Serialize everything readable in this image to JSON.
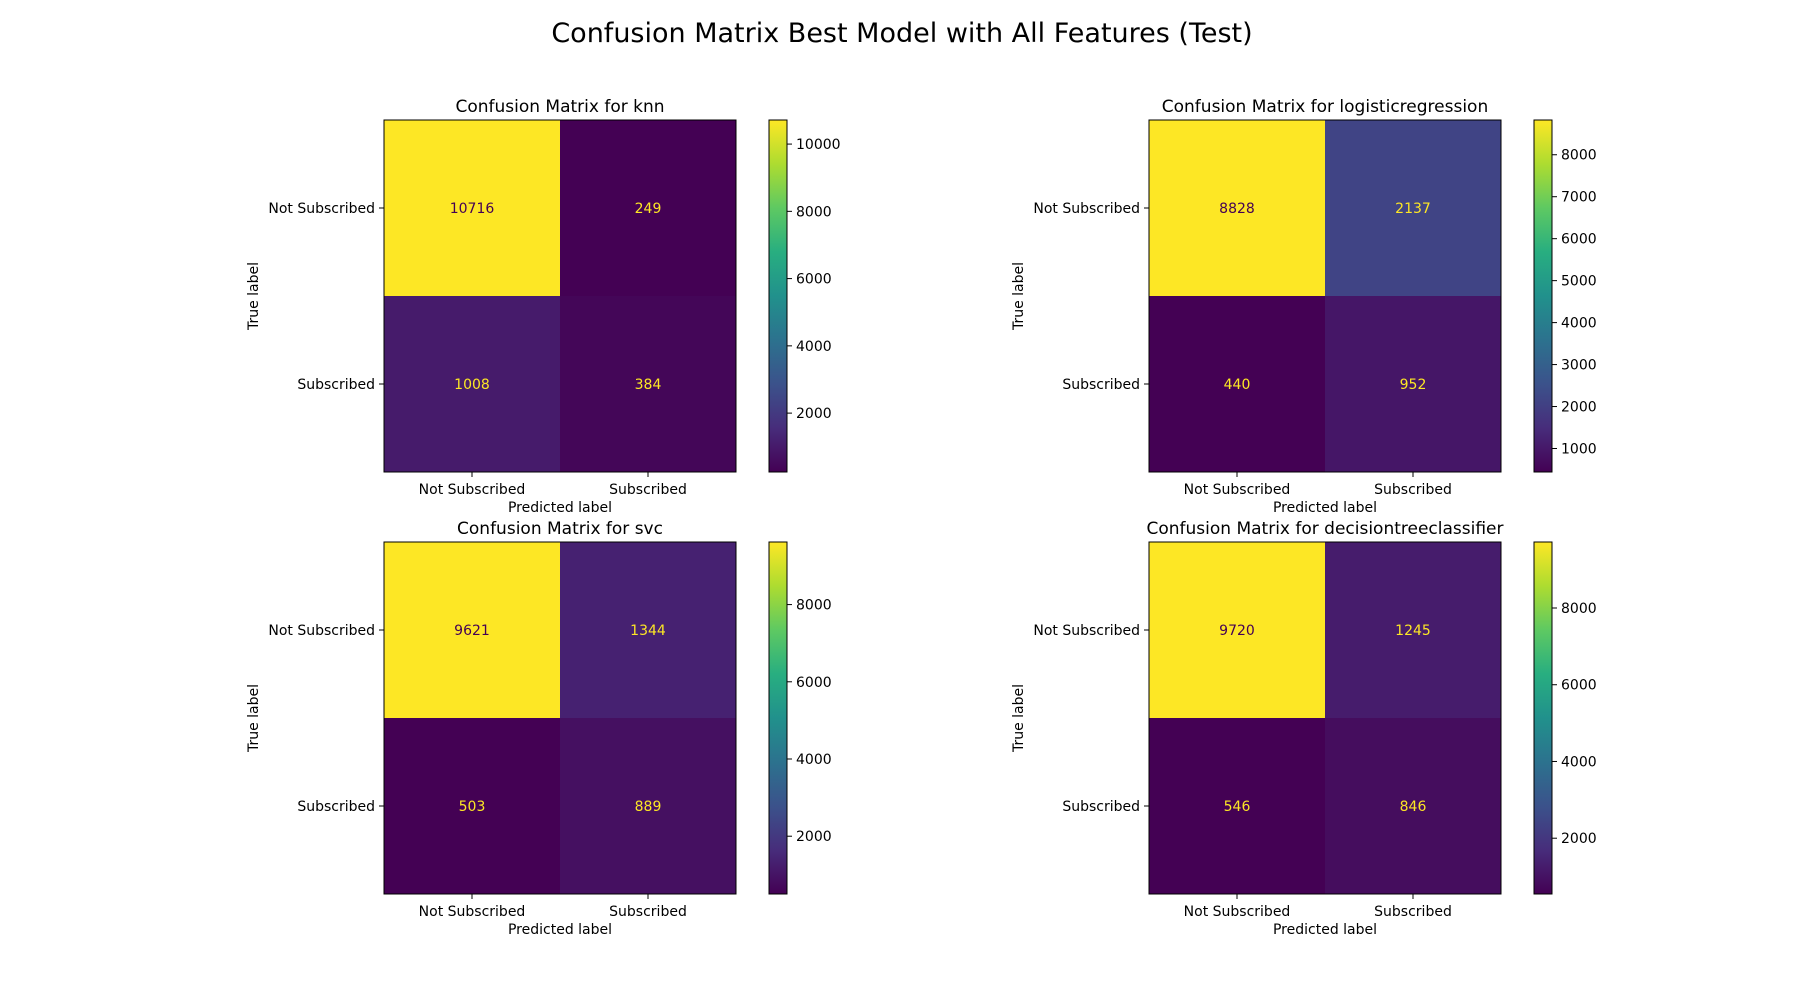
{
  "figure": {
    "title": "Confusion Matrix Best Model with All Features (Test)"
  },
  "chart_data": [
    {
      "type": "heatmap",
      "title": "Confusion Matrix for knn",
      "xlabel": "Predicted label",
      "ylabel": "True label",
      "x_categories": [
        "Not Subscribed",
        "Subscribed"
      ],
      "y_categories": [
        "Not Subscribed",
        "Subscribed"
      ],
      "values": [
        [
          10716,
          249
        ],
        [
          1008,
          384
        ]
      ],
      "colormap": "viridis",
      "colorbar_ticks": [
        2000,
        4000,
        6000,
        8000,
        10000
      ]
    },
    {
      "type": "heatmap",
      "title": "Confusion Matrix for logisticregression",
      "xlabel": "Predicted label",
      "ylabel": "True label",
      "x_categories": [
        "Not Subscribed",
        "Subscribed"
      ],
      "y_categories": [
        "Not Subscribed",
        "Subscribed"
      ],
      "values": [
        [
          8828,
          2137
        ],
        [
          440,
          952
        ]
      ],
      "colormap": "viridis",
      "colorbar_ticks": [
        1000,
        2000,
        3000,
        4000,
        5000,
        6000,
        7000,
        8000
      ]
    },
    {
      "type": "heatmap",
      "title": "Confusion Matrix for svc",
      "xlabel": "Predicted label",
      "ylabel": "True label",
      "x_categories": [
        "Not Subscribed",
        "Subscribed"
      ],
      "y_categories": [
        "Not Subscribed",
        "Subscribed"
      ],
      "values": [
        [
          9621,
          1344
        ],
        [
          503,
          889
        ]
      ],
      "colormap": "viridis",
      "colorbar_ticks": [
        2000,
        4000,
        6000,
        8000
      ]
    },
    {
      "type": "heatmap",
      "title": "Confusion Matrix for decisiontreeclassifier",
      "xlabel": "Predicted label",
      "ylabel": "True label",
      "x_categories": [
        "Not Subscribed",
        "Subscribed"
      ],
      "y_categories": [
        "Not Subscribed",
        "Subscribed"
      ],
      "values": [
        [
          9720,
          1245
        ],
        [
          546,
          846
        ]
      ],
      "colormap": "viridis",
      "colorbar_ticks": [
        2000,
        4000,
        6000,
        8000
      ]
    }
  ]
}
